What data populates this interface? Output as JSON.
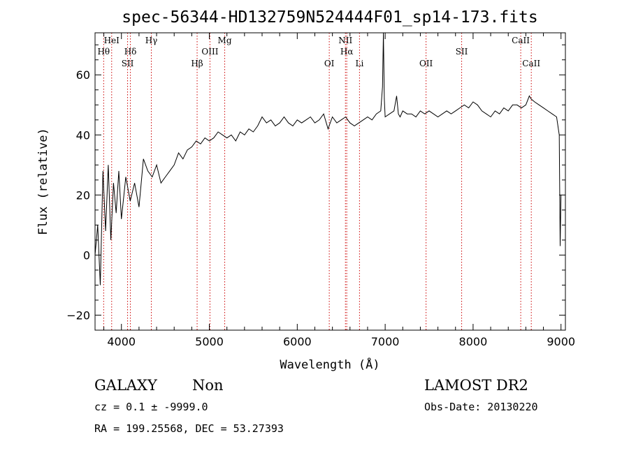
{
  "chart_data": {
    "type": "line",
    "title": "spec-56344-HD132759N524444F01_sp14-173.fits",
    "xlabel": "Wavelength (Å)",
    "ylabel": "Flux (relative)",
    "xlim": [
      3700,
      9050
    ],
    "ylim": [
      -25,
      74
    ],
    "x_ticks": [
      4000,
      5000,
      6000,
      7000,
      8000,
      9000
    ],
    "y_ticks": [
      -20,
      0,
      20,
      40,
      60
    ],
    "grid": false,
    "series": [
      {
        "x": [
          3700,
          3730,
          3760,
          3790,
          3820,
          3850,
          3880,
          3910,
          3940,
          3970,
          4000,
          4050,
          4100,
          4150,
          4200,
          4250,
          4300,
          4350,
          4400,
          4450,
          4500,
          4550,
          4600,
          4650,
          4700,
          4750,
          4800,
          4850,
          4900,
          4950,
          5000,
          5050,
          5100,
          5150,
          5200,
          5250,
          5300,
          5350,
          5400,
          5450,
          5500,
          5550,
          5600,
          5650,
          5700,
          5750,
          5800,
          5850,
          5900,
          5950,
          6000,
          6050,
          6100,
          6150,
          6200,
          6250,
          6300,
          6350,
          6400,
          6450,
          6500,
          6550,
          6600,
          6650,
          6700,
          6750,
          6800,
          6850,
          6900,
          6950,
          6970,
          6980,
          6990,
          7000,
          7050,
          7100,
          7130,
          7150,
          7170,
          7200,
          7250,
          7300,
          7350,
          7400,
          7450,
          7500,
          7550,
          7600,
          7650,
          7700,
          7750,
          7800,
          7850,
          7900,
          7950,
          8000,
          8050,
          8100,
          8150,
          8200,
          8250,
          8300,
          8350,
          8400,
          8450,
          8500,
          8550,
          8600,
          8640,
          8660,
          8700,
          8750,
          8800,
          8850,
          8900,
          8950,
          8980,
          8990,
          9000
        ],
        "y": [
          0,
          10,
          -10,
          28,
          8,
          30,
          5,
          24,
          14,
          28,
          12,
          26,
          18,
          24,
          16,
          32,
          28,
          26,
          30,
          24,
          26,
          28,
          30,
          34,
          32,
          35,
          36,
          38,
          37,
          39,
          38,
          39,
          41,
          40,
          39,
          40,
          38,
          41,
          40,
          42,
          41,
          43,
          46,
          44,
          45,
          43,
          44,
          46,
          44,
          43,
          45,
          44,
          45,
          46,
          44,
          45,
          47,
          42,
          46,
          44,
          45,
          46,
          44,
          43,
          44,
          45,
          46,
          45,
          47,
          48,
          56,
          74,
          52,
          46,
          47,
          48,
          53,
          47,
          46,
          48,
          47,
          47,
          46,
          48,
          47,
          48,
          47,
          46,
          47,
          48,
          47,
          48,
          49,
          50,
          49,
          51,
          50,
          48,
          47,
          46,
          48,
          47,
          49,
          48,
          50,
          50,
          49,
          50,
          53,
          52,
          51,
          50,
          49,
          48,
          47,
          46,
          40,
          3,
          20
        ]
      }
    ],
    "line_marks": [
      {
        "wave": 3798,
        "label": "Hθ",
        "row": 2
      },
      {
        "wave": 3889,
        "label": "HeI",
        "row": 1
      },
      {
        "wave": 4070,
        "label": "SII",
        "row": 3
      },
      {
        "wave": 4102,
        "label": "Hδ",
        "row": 2
      },
      {
        "wave": 4340,
        "label": "Hγ",
        "row": 1
      },
      {
        "wave": 4861,
        "label": "Hβ",
        "row": 3
      },
      {
        "wave": 5007,
        "label": "OIII",
        "row": 2
      },
      {
        "wave": 5175,
        "label": "Mg",
        "row": 1
      },
      {
        "wave": 6364,
        "label": "OI",
        "row": 3
      },
      {
        "wave": 6548,
        "label": "NII",
        "row": 1
      },
      {
        "wave": 6563,
        "label": "Hα",
        "row": 2
      },
      {
        "wave": 6708,
        "label": "Li",
        "row": 3
      },
      {
        "wave": 7465,
        "label": "OII",
        "row": 3
      },
      {
        "wave": 7870,
        "label": "SII",
        "row": 2
      },
      {
        "wave": 8542,
        "label": "CaII",
        "row": 1
      },
      {
        "wave": 8662,
        "label": "CaII",
        "row": 3
      }
    ]
  },
  "info": {
    "class_label": "GALAXY",
    "subclass_label": "Non",
    "survey": "LAMOST DR2",
    "cz_text": "cz = 0.1 ± -9999.0",
    "obs_date": "Obs-Date: 20130220",
    "coords_text": "RA = 199.25568, DEC =  53.27393"
  }
}
